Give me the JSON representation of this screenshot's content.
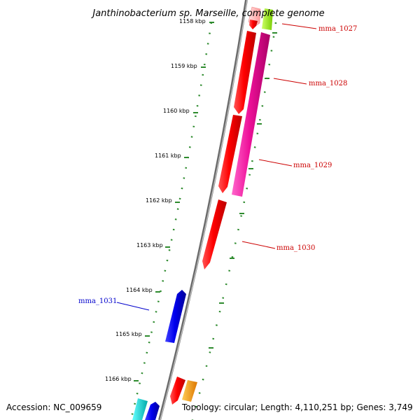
{
  "title": "Janthinobacterium sp. Marseille, complete genome",
  "footer": {
    "accession": "Accession: NC_009659",
    "topology": "Topology: circular; Length: 4,110,251 bp; Genes: 3,749"
  },
  "colors": {
    "backbone": "#808080",
    "ticks": "#2e8b2e",
    "label_forward": "#cc0000",
    "label_reverse": "#0000cc",
    "red": "#ff0000",
    "magenta": "#ee1199",
    "pink": "#ffaaaa",
    "lime": "#99ee22",
    "orange": "#ff9900",
    "blue": "#0000ee",
    "cyan": "#00dddd"
  },
  "axis": {
    "unit": "kbp",
    "labels": [
      "1158 kbp",
      "1159 kbp",
      "1160 kbp",
      "1161 kbp",
      "1162 kbp",
      "1163 kbp",
      "1164 kbp",
      "1165 kbp",
      "1166 kbp"
    ]
  },
  "gene_labels": [
    {
      "name": "mma_1027",
      "strand": "forward"
    },
    {
      "name": "mma_1028",
      "strand": "forward"
    },
    {
      "name": "mma_1029",
      "strand": "forward"
    },
    {
      "name": "mma_1030",
      "strand": "forward"
    },
    {
      "name": "mma_1031",
      "strand": "reverse"
    }
  ],
  "features": [
    {
      "name": "pink-feature",
      "color": "pink",
      "track": "forward"
    },
    {
      "name": "lime-feature",
      "color": "lime",
      "track": "forward-outer"
    },
    {
      "name": "red-feature-1",
      "color": "red",
      "track": "forward"
    },
    {
      "name": "magenta-feature",
      "color": "magenta",
      "track": "forward-outer"
    },
    {
      "name": "red-feature-2",
      "color": "red",
      "track": "forward"
    },
    {
      "name": "red-feature-3",
      "color": "red",
      "track": "forward"
    },
    {
      "name": "blue-feature-1",
      "color": "blue",
      "track": "reverse"
    },
    {
      "name": "red-feature-4",
      "color": "red",
      "track": "forward"
    },
    {
      "name": "orange-feature",
      "color": "orange",
      "track": "forward-outer"
    },
    {
      "name": "cyan-feature",
      "color": "cyan",
      "track": "reverse-outer"
    },
    {
      "name": "blue-feature-2",
      "color": "blue",
      "track": "reverse"
    }
  ]
}
